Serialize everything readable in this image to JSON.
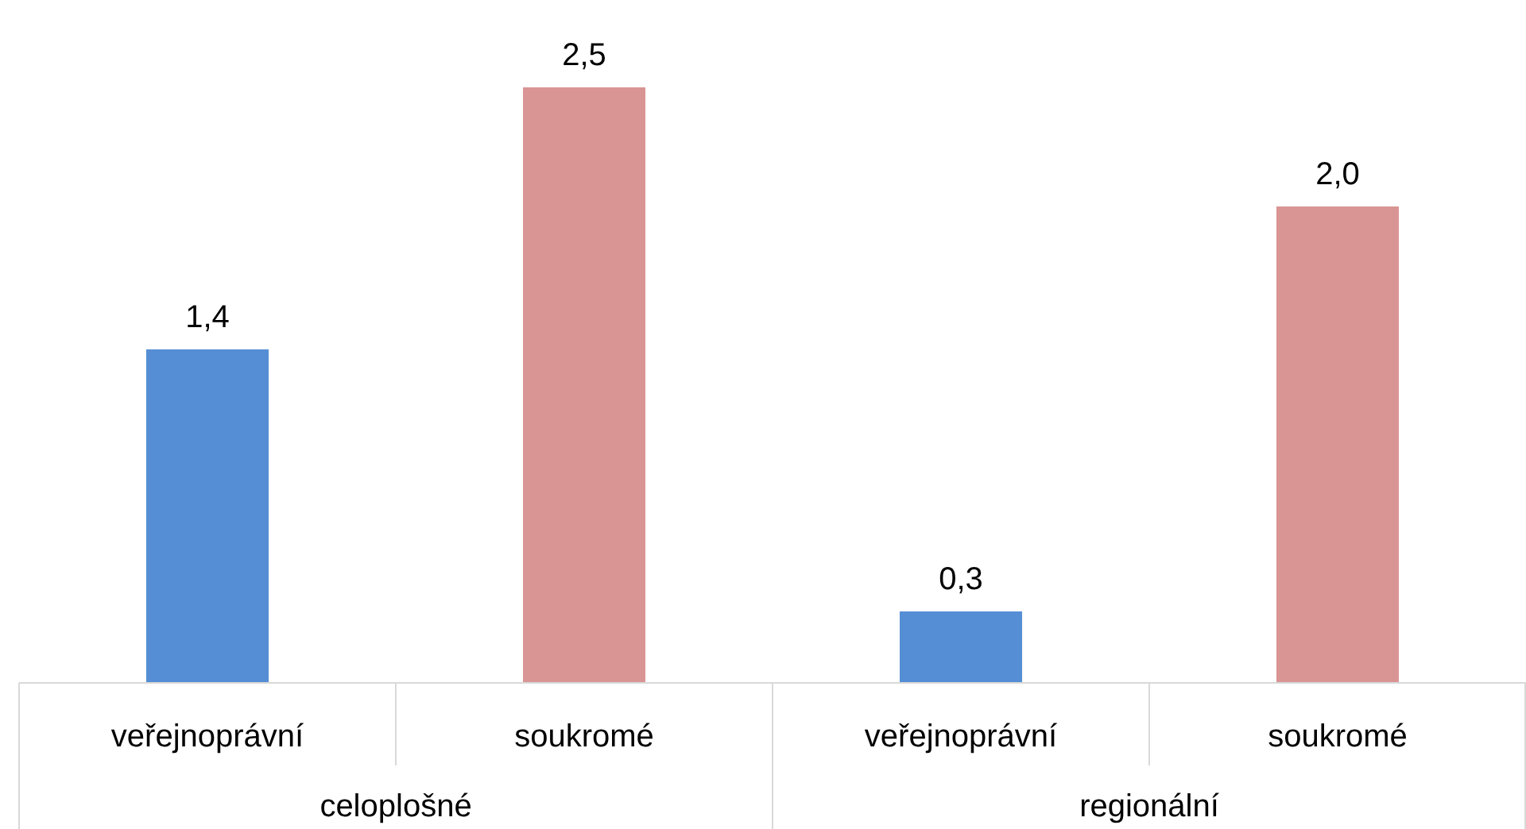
{
  "chart_data": {
    "type": "bar",
    "categories": [
      "veřejnoprávní",
      "soukromé",
      "veřejnoprávní",
      "soukromé"
    ],
    "values": [
      1.4,
      2.5,
      0.3,
      2.0
    ],
    "colors": [
      "#558ed5",
      "#d99594",
      "#558ed5",
      "#d99594"
    ],
    "value_labels": [
      "1,4",
      "2,5",
      "0,3",
      "2,0"
    ],
    "annotations": [
      "celoplošné",
      "regionální"
    ]
  }
}
